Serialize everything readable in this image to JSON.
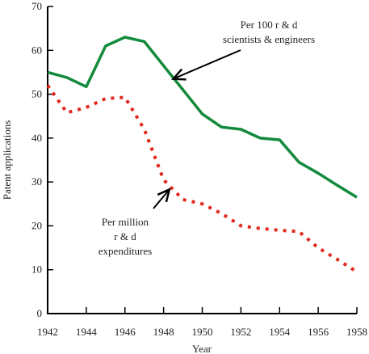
{
  "chart_data": {
    "type": "line",
    "xlabel": "Year",
    "ylabel": "Patent applications",
    "xlim": [
      1942,
      1958
    ],
    "ylim": [
      0,
      70
    ],
    "x_ticks": [
      1942,
      1944,
      1946,
      1948,
      1950,
      1952,
      1954,
      1956,
      1958
    ],
    "y_ticks": [
      0,
      10,
      20,
      30,
      40,
      50,
      60,
      70
    ],
    "grid": false,
    "legend": "none",
    "series": [
      {
        "name": "Per 100 r & d scientists & engineers",
        "style": "solid",
        "color": "#138a3c",
        "points": [
          [
            1942,
            55
          ],
          [
            1943,
            53.8
          ],
          [
            1944,
            51.7
          ],
          [
            1945,
            61
          ],
          [
            1946,
            63
          ],
          [
            1947,
            62
          ],
          [
            1948,
            56.5
          ],
          [
            1949,
            51
          ],
          [
            1950,
            45.5
          ],
          [
            1951,
            42.5
          ],
          [
            1952,
            42
          ],
          [
            1953,
            40
          ],
          [
            1954,
            39.6
          ],
          [
            1955,
            34.5
          ],
          [
            1956,
            32
          ],
          [
            1957,
            29.2
          ],
          [
            1958,
            26.5
          ]
        ]
      },
      {
        "name": "Per million r & d expenditures",
        "style": "dotted",
        "color": "#e0281d",
        "points": [
          [
            1942,
            52
          ],
          [
            1943,
            45.8
          ],
          [
            1944,
            47
          ],
          [
            1945,
            49
          ],
          [
            1946,
            49.3
          ],
          [
            1947,
            42
          ],
          [
            1948,
            30.5
          ],
          [
            1949,
            26
          ],
          [
            1950,
            25
          ],
          [
            1951,
            22.8
          ],
          [
            1952,
            20
          ],
          [
            1953,
            19.4
          ],
          [
            1954,
            19
          ],
          [
            1955,
            18.7
          ],
          [
            1956,
            15
          ],
          [
            1957,
            12.3
          ],
          [
            1958,
            9.5
          ]
        ]
      }
    ],
    "annotations": [
      {
        "id": "top",
        "lines": [
          "Per 100 r & d",
          "scientists & engineers"
        ],
        "series": 0,
        "arrow_to": [
          1948.5,
          53.5
        ]
      },
      {
        "id": "bottom",
        "lines": [
          "Per million",
          "r & d",
          "expenditures"
        ],
        "series": 1,
        "arrow_to": [
          1948.3,
          28.3
        ]
      }
    ]
  }
}
